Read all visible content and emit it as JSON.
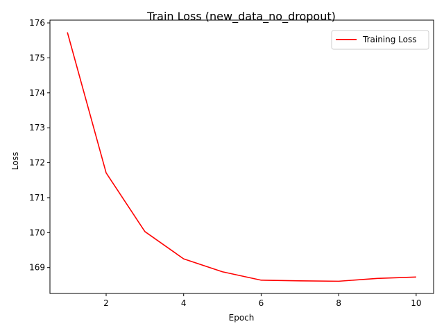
{
  "chart_data": {
    "type": "line",
    "title": "Train Loss (new_data_no_dropout)",
    "xlabel": "Epoch",
    "ylabel": "Loss",
    "xlim": [
      0.55,
      10.45
    ],
    "ylim": [
      168.26,
      176.08
    ],
    "xticks": [
      2,
      4,
      6,
      8,
      10
    ],
    "yticks": [
      169,
      170,
      171,
      172,
      173,
      174,
      175,
      176
    ],
    "grid": false,
    "legend_position": "top-right",
    "series": [
      {
        "name": "Training Loss",
        "color": "#ff0000",
        "x": [
          1,
          2,
          3,
          4,
          5,
          6,
          7,
          8,
          9,
          10
        ],
        "y": [
          175.73,
          171.71,
          170.03,
          169.25,
          168.88,
          168.64,
          168.62,
          168.61,
          168.69,
          168.73
        ]
      }
    ]
  }
}
